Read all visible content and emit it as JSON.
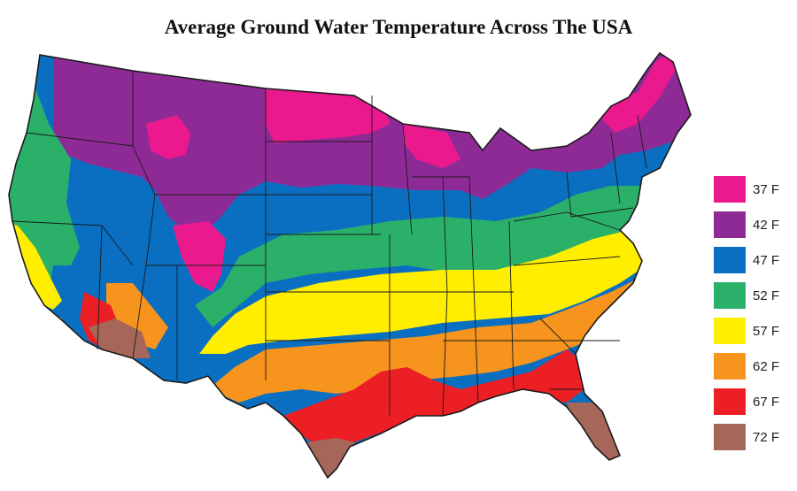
{
  "title": "Average Ground Water Temperature Across The USA",
  "colors": {
    "t37": "#ea1a8e",
    "t42": "#8e2a96",
    "t47": "#0a6fc1",
    "t52": "#2bb06a",
    "t57": "#ffee00",
    "t62": "#f7941d",
    "t67": "#ec2024",
    "t72": "#a6665a",
    "border": "#1a1a1a"
  },
  "legend": [
    {
      "label": "37 F",
      "color": "#ea1a8e"
    },
    {
      "label": "42 F",
      "color": "#8e2a96"
    },
    {
      "label": "47 F",
      "color": "#0a6fc1"
    },
    {
      "label": "52 F",
      "color": "#2bb06a"
    },
    {
      "label": "57 F",
      "color": "#ffee00"
    },
    {
      "label": "62 F",
      "color": "#f7941d"
    },
    {
      "label": "67 F",
      "color": "#ec2024"
    },
    {
      "label": "72 F",
      "color": "#a6665a"
    }
  ]
}
